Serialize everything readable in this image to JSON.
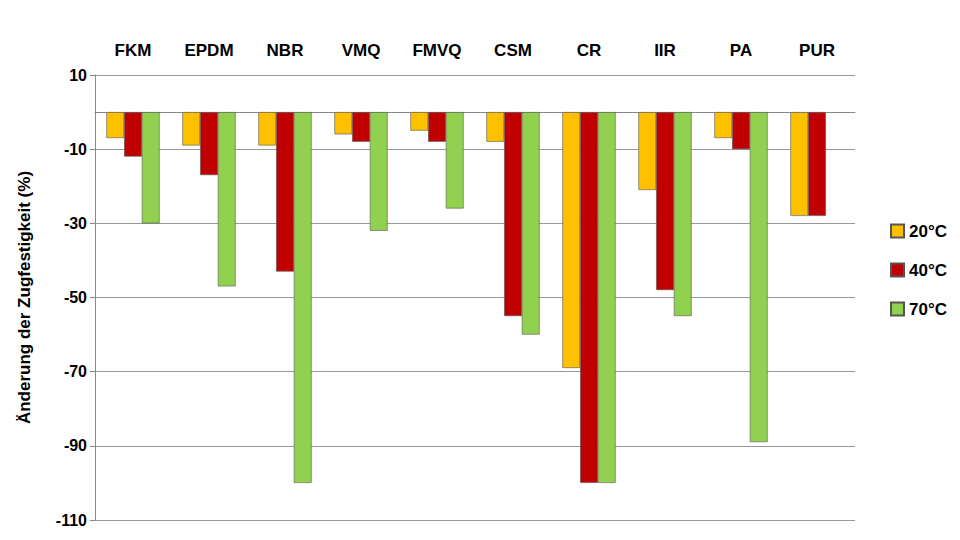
{
  "chart_data": {
    "type": "bar",
    "ylabel": "Änderung der Zugfestigkeit (%)",
    "categories": [
      "FKM",
      "EPDM",
      "NBR",
      "VMQ",
      "FMVQ",
      "CSM",
      "CR",
      "IIR",
      "PA",
      "PUR"
    ],
    "series": [
      {
        "name": "20°C",
        "color": "#ffc000",
        "values": [
          -7,
          -9,
          -9,
          -6,
          -5,
          -8,
          -69,
          -21,
          -7,
          -28
        ]
      },
      {
        "name": "40°C",
        "color": "#c00000",
        "values": [
          -12,
          -17,
          -43,
          -8,
          -8,
          -55,
          -100,
          -48,
          -10,
          -28
        ]
      },
      {
        "name": "70°C",
        "color": "#92d050",
        "values": [
          -30,
          -47,
          -100,
          -32,
          -26,
          -60,
          -100,
          -55,
          -89,
          null
        ]
      }
    ],
    "ylim": [
      -110,
      10
    ],
    "yticks": [
      -110,
      -90,
      -70,
      -50,
      -30,
      -10,
      10
    ],
    "grid": true,
    "legend": "right"
  }
}
